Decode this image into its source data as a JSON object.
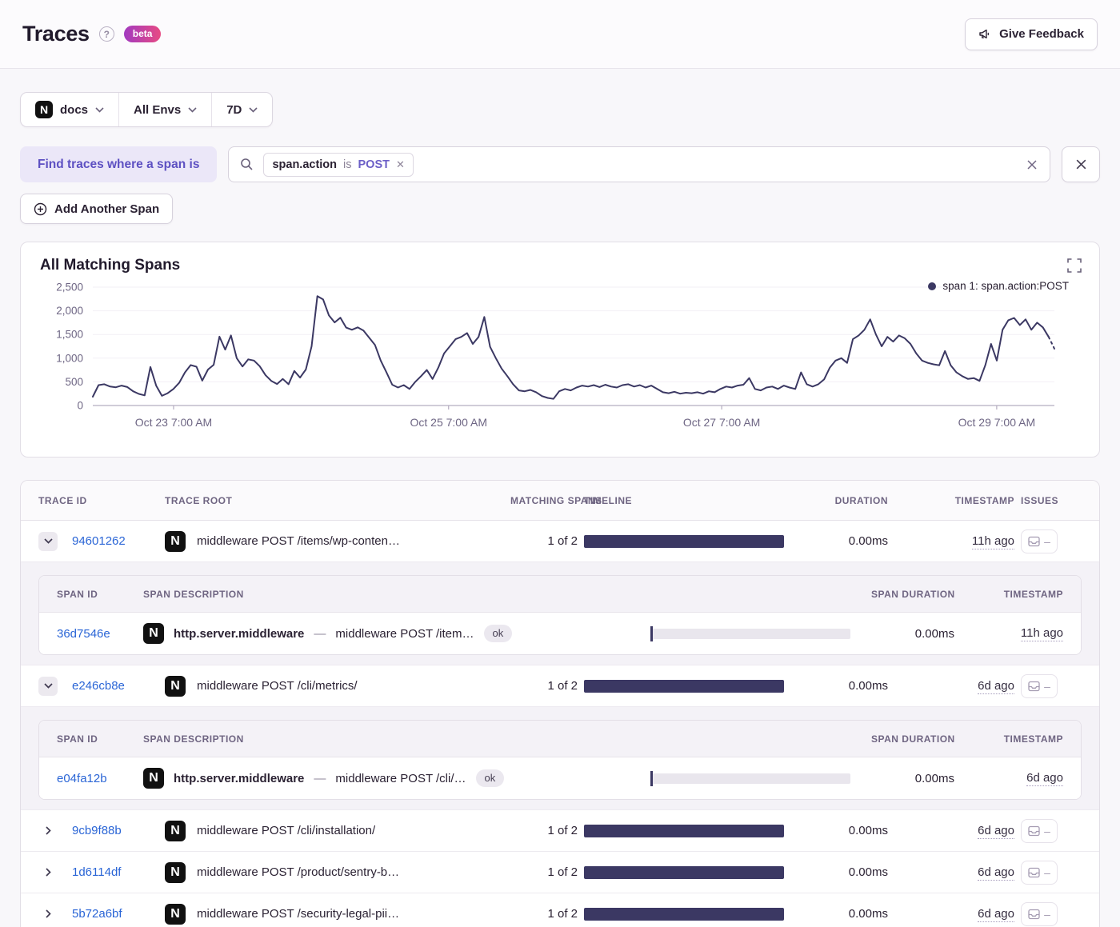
{
  "header": {
    "title": "Traces",
    "beta_label": "beta",
    "feedback_label": "Give Feedback"
  },
  "filters": {
    "project_label": "docs",
    "env_label": "All Envs",
    "period_label": "7D"
  },
  "query": {
    "label": "Find traces where a span is",
    "token": {
      "key": "span.action",
      "op": "is",
      "value": "POST"
    },
    "add_span_label": "Add Another Span"
  },
  "chart": {
    "title": "All Matching Spans",
    "legend_label": "span 1: span.action:POST"
  },
  "chart_data": {
    "type": "line",
    "title": "All Matching Spans",
    "ylim": [
      0,
      2500
    ],
    "y_ticks": [
      "0",
      "500",
      "1,000",
      "1,500",
      "2,000",
      "2,500"
    ],
    "x_ticks": [
      {
        "label": "Oct 23 7:00 AM",
        "pos": 0.084
      },
      {
        "label": "Oct 25 7:00 AM",
        "pos": 0.37
      },
      {
        "label": "Oct 27 7:00 AM",
        "pos": 0.654
      },
      {
        "label": "Oct 29 7:00 AM",
        "pos": 0.94
      }
    ],
    "x_unit": "time, ~1 sample per hour over 7 days",
    "grid": "horizontal-faint",
    "legend_position": "top-right",
    "dashed_tail_points": 2,
    "series": [
      {
        "name": "span 1: span.action:POST",
        "color": "#3b3863",
        "values": [
          185,
          430,
          450,
          400,
          385,
          420,
          390,
          300,
          245,
          215,
          815,
          420,
          205,
          260,
          350,
          480,
          700,
          855,
          820,
          525,
          760,
          860,
          1455,
          1180,
          1480,
          1000,
          825,
          975,
          950,
          830,
          640,
          520,
          455,
          560,
          450,
          730,
          590,
          760,
          1250,
          2310,
          2240,
          1905,
          1755,
          1855,
          1645,
          1600,
          1650,
          1585,
          1430,
          1280,
          950,
          700,
          440,
          380,
          430,
          350,
          500,
          620,
          750,
          560,
          800,
          1100,
          1250,
          1400,
          1450,
          1530,
          1300,
          1450,
          1870,
          1240,
          1000,
          780,
          620,
          450,
          320,
          300,
          330,
          280,
          200,
          160,
          140,
          300,
          350,
          320,
          380,
          420,
          400,
          430,
          390,
          440,
          400,
          380,
          430,
          450,
          400,
          430,
          380,
          420,
          350,
          280,
          260,
          290,
          250,
          270,
          260,
          280,
          250,
          300,
          280,
          350,
          400,
          380,
          420,
          440,
          580,
          350,
          320,
          380,
          400,
          350,
          420,
          380,
          350,
          700,
          450,
          400,
          450,
          550,
          800,
          950,
          1000,
          900,
          1400,
          1480,
          1600,
          1820,
          1500,
          1250,
          1450,
          1350,
          1480,
          1420,
          1300,
          1100,
          950,
          900,
          870,
          850,
          1150,
          850,
          700,
          620,
          560,
          580,
          520,
          850,
          1300,
          950,
          1600,
          1800,
          1850,
          1700,
          1820,
          1600,
          1750,
          1650,
          1450,
          1200
        ]
      }
    ]
  },
  "table": {
    "columns": [
      "Trace ID",
      "Trace Root",
      "Matching Spans",
      "Timeline",
      "Duration",
      "Timestamp",
      "Issues"
    ],
    "span_columns": [
      "Span ID",
      "Span Description",
      "Span Duration",
      "Timestamp"
    ],
    "rows": [
      {
        "id": "94601262",
        "root": "middleware POST /items/wp-conten…",
        "matching": "1 of 2",
        "duration": "0.00ms",
        "timestamp": "11h ago",
        "expanded": true,
        "spans": [
          {
            "id": "36d7546e",
            "op": "http.server.middleware",
            "sep": "—",
            "desc": "middleware POST /item…",
            "status": "ok",
            "duration": "0.00ms",
            "timestamp": "11h ago"
          }
        ]
      },
      {
        "id": "e246cb8e",
        "root": "middleware POST /cli/metrics/",
        "matching": "1 of 2",
        "duration": "0.00ms",
        "timestamp": "6d ago",
        "expanded": true,
        "spans": [
          {
            "id": "e04fa12b",
            "op": "http.server.middleware",
            "sep": "—",
            "desc": "middleware POST /cli/…",
            "status": "ok",
            "duration": "0.00ms",
            "timestamp": "6d ago"
          }
        ]
      },
      {
        "id": "9cb9f88b",
        "root": "middleware POST /cli/installation/",
        "matching": "1 of 2",
        "duration": "0.00ms",
        "timestamp": "6d ago",
        "expanded": false
      },
      {
        "id": "1d6114df",
        "root": "middleware POST /product/sentry-b…",
        "matching": "1 of 2",
        "duration": "0.00ms",
        "timestamp": "6d ago",
        "expanded": false
      },
      {
        "id": "5b72a6bf",
        "root": "middleware POST /security-legal-pii…",
        "matching": "1 of 2",
        "duration": "0.00ms",
        "timestamp": "6d ago",
        "expanded": false
      }
    ]
  },
  "colors": {
    "accent_purple": "#6c5fc7",
    "link_blue": "#2a65d6",
    "chart_navy": "#3b3863",
    "beta_gradient_start": "#a23ac0",
    "beta_gradient_end": "#e74a83"
  }
}
